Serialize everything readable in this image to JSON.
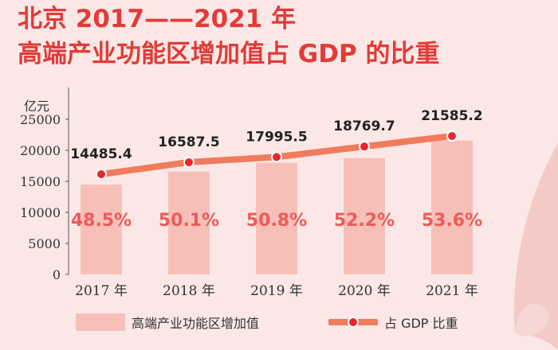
{
  "title": {
    "line1": "北京 2017——2021 年",
    "line2": "高端产业功能区增加值占 GDP 的比重"
  },
  "unit_label": "亿元",
  "legend": {
    "bar_label": "高端产业功能区增加值",
    "line_label": "占 GDP 比重"
  },
  "colors": {
    "background": "#fbe8e6",
    "bar": "#f6c0b9",
    "line": "#f07b5d",
    "marker": "#e8262f",
    "title": "#e23b38",
    "percent_text": "#ef5a57"
  },
  "chart_data": {
    "type": "bar",
    "title": "北京 2017——2021 年 高端产业功能区增加值占 GDP 的比重",
    "xlabel": "",
    "ylabel": "亿元",
    "ylim": [
      0,
      25000
    ],
    "y_ticks": [
      0,
      5000,
      10000,
      15000,
      20000,
      25000
    ],
    "categories": [
      "2017 年",
      "2018 年",
      "2019 年",
      "2020 年",
      "2021 年"
    ],
    "series": [
      {
        "name": "高端产业功能区增加值",
        "type": "bar",
        "values": [
          14485.4,
          16587.5,
          17995.5,
          18769.7,
          21585.2
        ],
        "labels": [
          "14485.4",
          "16587.5",
          "17995.5",
          "18769.7",
          "21585.2"
        ]
      },
      {
        "name": "占 GDP 比重",
        "type": "line",
        "unit": "%",
        "values": [
          48.5,
          50.1,
          50.8,
          52.2,
          53.6
        ],
        "labels": [
          "48.5%",
          "50.1%",
          "50.8%",
          "52.2%",
          "53.6%"
        ]
      }
    ]
  }
}
